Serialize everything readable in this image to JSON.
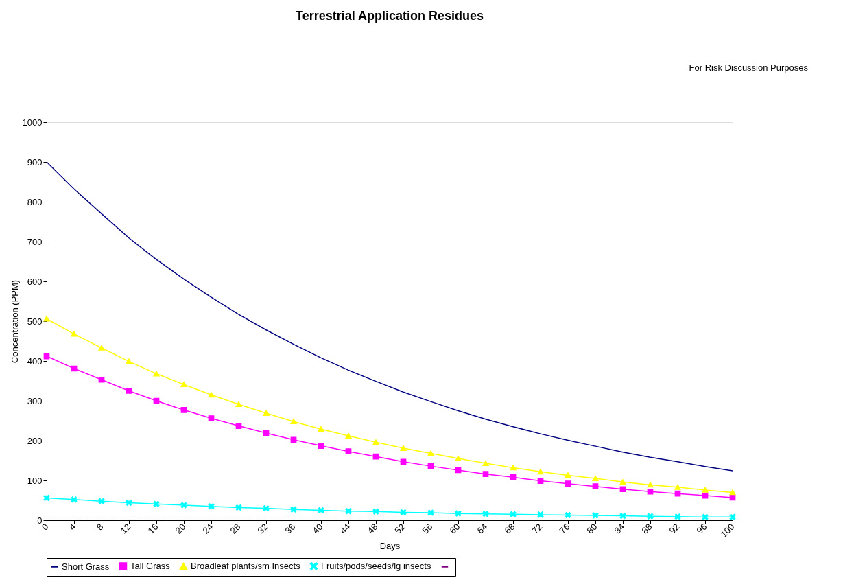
{
  "chart_data": {
    "type": "line",
    "title": "Terrestrial Application Residues",
    "xlabel": "Days",
    "ylabel": "Concentration (PPM)",
    "annotations": [
      "For Risk Discussion Purposes"
    ],
    "x": [
      0,
      4,
      8,
      12,
      16,
      20,
      24,
      28,
      32,
      36,
      40,
      44,
      48,
      52,
      56,
      60,
      64,
      68,
      72,
      76,
      80,
      84,
      88,
      92,
      96,
      100
    ],
    "xlim": [
      0,
      100
    ],
    "xticks": [
      0,
      4,
      8,
      12,
      16,
      20,
      24,
      28,
      32,
      36,
      40,
      44,
      48,
      52,
      56,
      60,
      64,
      68,
      72,
      76,
      80,
      84,
      88,
      92,
      96,
      100
    ],
    "ylim": [
      0,
      1000
    ],
    "yticks": [
      0,
      100,
      200,
      300,
      400,
      500,
      600,
      700,
      800,
      900,
      1000
    ],
    "grid": false,
    "legend": "bottom",
    "series": [
      {
        "name": "Short Grass",
        "color": "#000080",
        "marker": "none",
        "line_style": "solid",
        "values": [
          900,
          832,
          770,
          709,
          655,
          606,
          560,
          517,
          478,
          442,
          408,
          377,
          349,
          322,
          298,
          275,
          254,
          235,
          217,
          201,
          186,
          171,
          158,
          147,
          135,
          124
        ]
      },
      {
        "name": "Tall Grass",
        "color": "#ff00ff",
        "marker": "square",
        "line_style": "solid",
        "values": [
          412,
          381,
          353,
          325,
          300,
          277,
          256,
          237,
          219,
          202,
          187,
          173,
          160,
          147,
          136,
          126,
          116,
          108,
          99,
          92,
          85,
          78,
          72,
          67,
          62,
          57
        ]
      },
      {
        "name": "Broadleaf plants/sm Insects",
        "color": "#ffff00",
        "marker": "triangle",
        "line_style": "solid",
        "values": [
          506,
          468,
          433,
          399,
          368,
          341,
          315,
          291,
          269,
          248,
          229,
          212,
          196,
          181,
          168,
          155,
          143,
          132,
          122,
          113,
          105,
          96,
          89,
          83,
          76,
          70
        ]
      },
      {
        "name": "Fruits/pods/seeds/lg insects",
        "color": "#00ffff",
        "marker": "cross",
        "line_style": "solid",
        "values": [
          56,
          52,
          48,
          44,
          41,
          38,
          35,
          32,
          30,
          27,
          25,
          23,
          22,
          20,
          19,
          17,
          16,
          15,
          14,
          13,
          12,
          11,
          10,
          9,
          8,
          8
        ]
      },
      {
        "color": "#800080",
        "marker": "none",
        "line_style": "dashed",
        "values": [
          0,
          0,
          0,
          0,
          0,
          0,
          0,
          0,
          0,
          0,
          0,
          0,
          0,
          0,
          0,
          0,
          0,
          0,
          0,
          0,
          0,
          0,
          0,
          0,
          0,
          0
        ]
      }
    ]
  }
}
